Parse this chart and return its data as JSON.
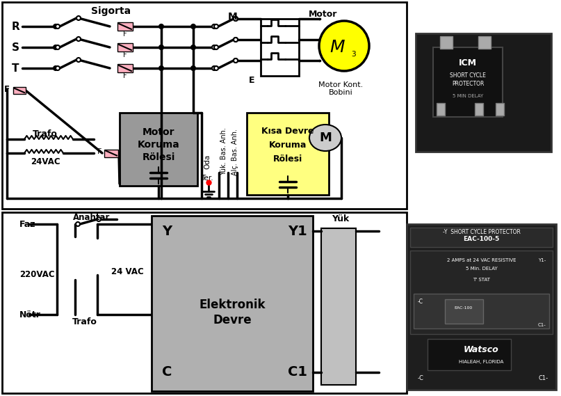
{
  "title": "",
  "bg_color": "#ffffff",
  "top_section": {
    "sigorta_label": "Sigorta",
    "R_label": "R",
    "S_label": "S",
    "T_label": "T",
    "F_label": "F",
    "M_label": "M",
    "E_label": "E",
    "Motor_label": "Motor",
    "M3_label": "M",
    "M3_sub": "3",
    "Motor_Kont_label": "Motor Kont.",
    "Bobini_label": "Bobini",
    "M_circle_label": "M",
    "Trafo_label": "Trafo",
    "VAC24_label": "24VAC",
    "Motor_Koruma_line1": "Motor",
    "Motor_Koruma_line2": "Koruma",
    "Motor_Koruma_line3": "Rölesi",
    "Oda_label": "Oda",
    "Ter_label": "Ter.",
    "Yuk_label": "Yük. Bas. Anh.",
    "Alc_label": "Alç. Bas. Anh.",
    "Kisa_line1": "Kısa Devre",
    "Kisa_line2": "Koruma",
    "Kisa_line3": "Rölesi"
  },
  "bottom_section": {
    "Faz_label": "Faz",
    "VAC220_label": "220VAC",
    "Notr_label": "Nötr",
    "Anahtar_label": "Anahtar",
    "VAC24_label": "24 VAC",
    "Trafo_label": "Trafo",
    "Y_label": "Y",
    "C_label": "C",
    "Y1_label": "Y1",
    "C1_label": "C1",
    "Elektronik_line1": "Elektronik",
    "Elektronik_line2": "Devre",
    "Yuk_label": "Yük"
  },
  "colors": {
    "black": "#000000",
    "white": "#ffffff",
    "yellow": "#ffff00",
    "gray_box": "#a0a0a0",
    "light_gray": "#c8c8c8",
    "pink": "#ffb0b0",
    "motor_yellow": "#ffff00",
    "relay_gray": "#888888",
    "border": "#000000",
    "fuse_pink": "#ffb0c0",
    "dark_gray_box": "#999999",
    "yellow_box": "#ffff80",
    "ed_gray": "#b0b0b0",
    "yuk_gray": "#c0c0c0",
    "photo_dark": "#404040",
    "photo2_dark": "#2a2a2a"
  }
}
